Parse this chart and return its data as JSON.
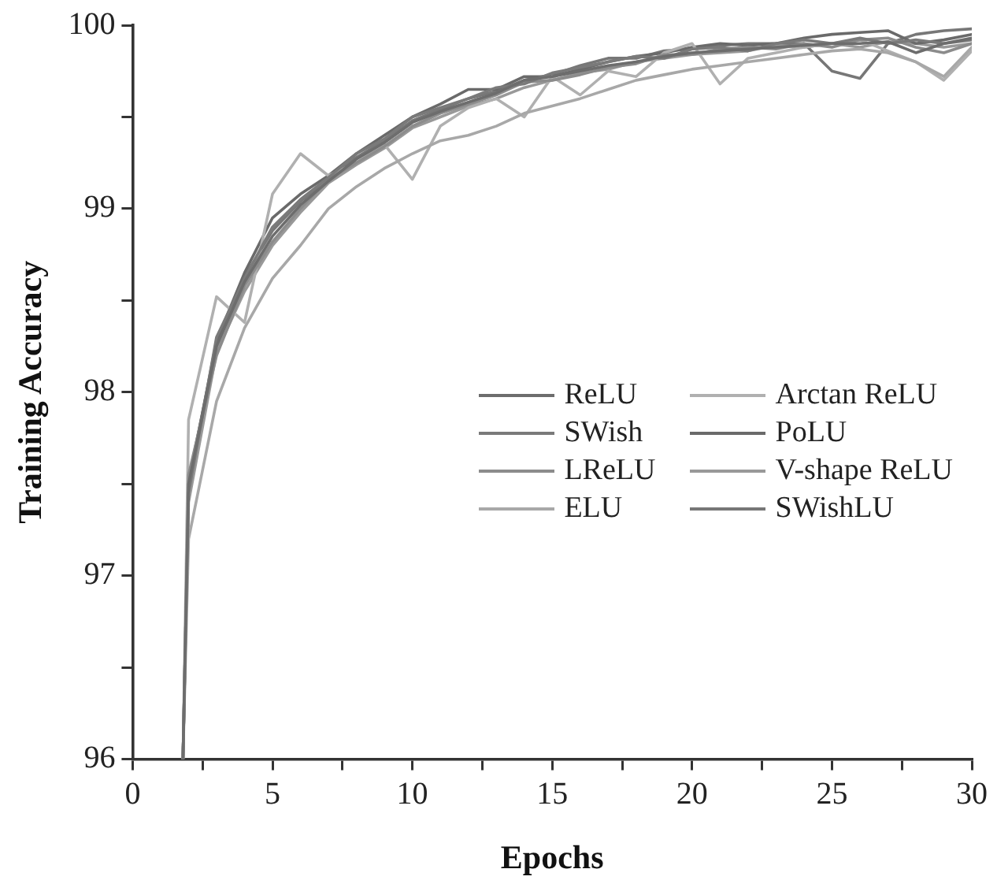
{
  "chart_data": {
    "type": "line",
    "xlabel": "Epochs",
    "ylabel": "Training Accuracy",
    "x": [
      1.8,
      2,
      3,
      4,
      5,
      6,
      7,
      8,
      9,
      10,
      11,
      12,
      13,
      14,
      15,
      16,
      17,
      18,
      19,
      20,
      21,
      22,
      23,
      24,
      25,
      26,
      27,
      28,
      29,
      30
    ],
    "xlim": [
      0,
      30
    ],
    "xticks": [
      0,
      {
        "value": 2.5,
        "label": null
      },
      5,
      {
        "value": 7.5,
        "label": null
      },
      10,
      {
        "value": 12.5,
        "label": null
      },
      15,
      {
        "value": 17.5,
        "label": null
      },
      20,
      {
        "value": 22.5,
        "label": null
      },
      25,
      {
        "value": 27.5,
        "label": null
      },
      30
    ],
    "ylim": [
      96,
      100
    ],
    "yticks": [
      96,
      {
        "value": 96.5,
        "label": null
      },
      97,
      {
        "value": 97.5,
        "label": null
      },
      98,
      {
        "value": 98.5,
        "label": null
      },
      99,
      {
        "value": 99.5,
        "label": null
      },
      100
    ],
    "grid": false,
    "legend": "right",
    "marker": "none",
    "line_style": "solid",
    "series": [
      {
        "name": "ReLU",
        "color": "#6d6d6d",
        "values": [
          96,
          97.5,
          98.25,
          98.6,
          98.85,
          99.02,
          99.15,
          99.27,
          99.36,
          99.47,
          99.53,
          99.58,
          99.63,
          99.7,
          99.72,
          99.75,
          99.78,
          99.8,
          99.83,
          99.85,
          99.86,
          99.87,
          99.88,
          99.89,
          99.9,
          99.9,
          99.91,
          99.85,
          99.9,
          99.93
        ]
      },
      {
        "name": "SWish",
        "color": "#7a7a7a",
        "values": [
          96,
          97.45,
          98.3,
          98.62,
          98.9,
          99.05,
          99.17,
          99.3,
          99.38,
          99.5,
          99.55,
          99.6,
          99.66,
          99.68,
          99.74,
          99.77,
          99.8,
          99.83,
          99.82,
          99.87,
          99.88,
          99.86,
          99.9,
          99.92,
          99.9,
          99.93,
          99.9,
          99.92,
          99.9,
          99.92
        ]
      },
      {
        "name": "LReLU",
        "color": "#8c8c8c",
        "values": [
          96,
          97.55,
          98.2,
          98.58,
          98.82,
          99.0,
          99.16,
          99.25,
          99.34,
          99.45,
          99.52,
          99.57,
          99.62,
          99.69,
          99.7,
          99.73,
          99.77,
          99.79,
          99.84,
          99.84,
          99.87,
          99.88,
          99.87,
          99.9,
          99.88,
          99.92,
          99.93,
          99.88,
          99.85,
          99.9
        ]
      },
      {
        "name": "ELU",
        "color": "#a8a8a8",
        "values": [
          96,
          97.2,
          97.95,
          98.35,
          98.62,
          98.8,
          99.0,
          99.12,
          99.22,
          99.3,
          99.37,
          99.4,
          99.45,
          99.52,
          99.56,
          99.6,
          99.65,
          99.7,
          99.73,
          99.76,
          99.78,
          99.8,
          99.82,
          99.84,
          99.86,
          99.87,
          99.85,
          99.8,
          99.72,
          99.88
        ]
      },
      {
        "name": "Arctan ReLU",
        "color": "#b0b0b0",
        "values": [
          96,
          97.85,
          98.52,
          98.38,
          99.08,
          99.3,
          99.18,
          99.25,
          99.35,
          99.16,
          99.45,
          99.55,
          99.6,
          99.5,
          99.72,
          99.62,
          99.75,
          99.72,
          99.85,
          99.9,
          99.68,
          99.82,
          99.85,
          99.88,
          99.9,
          99.92,
          99.86,
          99.8,
          99.7,
          99.86
        ]
      },
      {
        "name": "PoLU",
        "color": "#6a6a6a",
        "values": [
          96,
          97.5,
          98.28,
          98.65,
          98.95,
          99.08,
          99.18,
          99.3,
          99.4,
          99.5,
          99.57,
          99.65,
          99.65,
          99.72,
          99.72,
          99.76,
          99.8,
          99.83,
          99.85,
          99.88,
          99.9,
          99.89,
          99.9,
          99.93,
          99.95,
          99.96,
          99.97,
          99.9,
          99.92,
          99.95
        ]
      },
      {
        "name": "V-shape ReLU",
        "color": "#999999",
        "values": [
          96,
          97.4,
          98.22,
          98.55,
          98.8,
          98.98,
          99.14,
          99.24,
          99.33,
          99.44,
          99.5,
          99.56,
          99.6,
          99.66,
          99.7,
          99.74,
          99.76,
          99.8,
          99.82,
          99.84,
          99.85,
          99.86,
          99.89,
          99.88,
          99.9,
          99.88,
          99.91,
          99.9,
          99.88,
          99.9
        ]
      },
      {
        "name": "SWishLU",
        "color": "#777777",
        "values": [
          96,
          97.52,
          98.26,
          98.63,
          98.88,
          99.04,
          99.16,
          99.28,
          99.37,
          99.48,
          99.54,
          99.6,
          99.64,
          99.7,
          99.73,
          99.78,
          99.82,
          99.82,
          99.86,
          99.87,
          99.89,
          99.9,
          99.9,
          99.9,
          99.75,
          99.71,
          99.9,
          99.95,
          99.97,
          99.98
        ]
      }
    ]
  }
}
